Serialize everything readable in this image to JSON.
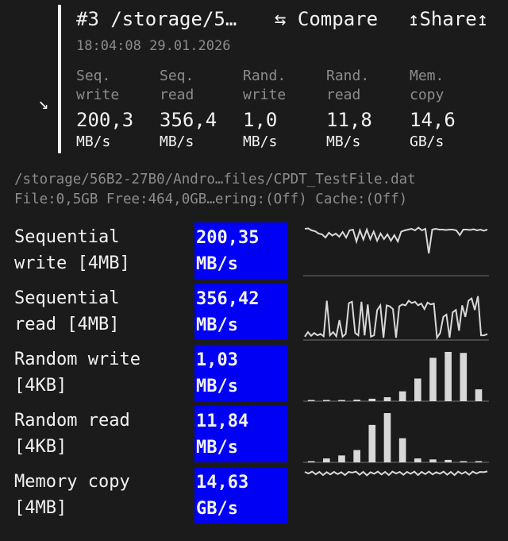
{
  "header": {
    "title": "#3 /storage/5…",
    "compare_label": "⇆ Compare",
    "share_label": "↥Share↥",
    "datetime": "18:04:08 29.01.2026",
    "collapse_icon": "arrow-down-right-icon",
    "summary": [
      {
        "label1": "Seq.",
        "label2": "write",
        "value": "200,3",
        "unit": "MB/s"
      },
      {
        "label1": "Seq.",
        "label2": "read",
        "value": "356,4",
        "unit": "MB/s"
      },
      {
        "label1": "Rand.",
        "label2": "write",
        "value": "1,0",
        "unit": "MB/s"
      },
      {
        "label1": "Rand.",
        "label2": "read",
        "value": "11,8",
        "unit": "MB/s"
      },
      {
        "label1": "Mem.",
        "label2": "copy",
        "value": "14,6",
        "unit": "GB/s"
      }
    ]
  },
  "info": {
    "path": "/storage/56B2-27B0/Andro…files/CPDT_TestFile.dat",
    "details": "File:0,5GB Free:464,0GB…ering:(Off) Cache:(Off)"
  },
  "colors": {
    "accent": "#0000f5",
    "background": "#1b1b1b",
    "graph": "#d8d8d8"
  },
  "results": [
    {
      "label": "Sequential\nwrite [4MB]",
      "value": "200,35",
      "unit": "MB/s",
      "graph": "line",
      "series": [
        0.92,
        0.93,
        0.88,
        0.86,
        0.8,
        0.78,
        0.7,
        0.82,
        0.75,
        0.8,
        0.72,
        0.84,
        0.7,
        0.88,
        0.9,
        0.6,
        0.88,
        0.65,
        0.9,
        0.66,
        0.85,
        0.62,
        0.8,
        0.66,
        0.78,
        0.62,
        0.76,
        0.6,
        0.85,
        0.88,
        0.9,
        0.92,
        0.88,
        0.95,
        0.88,
        0.92,
        0.3,
        0.9,
        0.92,
        0.9,
        0.9,
        0.89,
        0.9,
        0.9,
        0.88,
        0.76,
        0.9,
        0.9,
        0.89,
        0.91,
        0.88,
        0.9,
        0.87,
        0.9
      ]
    },
    {
      "label": "Sequential\nread [4MB]",
      "value": "356,42",
      "unit": "MB/s",
      "graph": "line",
      "series": [
        0.02,
        0.12,
        0.04,
        0.1,
        0.05,
        0.08,
        0.03,
        0.8,
        0.05,
        0.12,
        0.03,
        0.38,
        0.02,
        0.08,
        0.75,
        0.78,
        0.1,
        0.05,
        0.78,
        0.05,
        0.72,
        0.02,
        0.05,
        0.6,
        0.7,
        0.0,
        0.7,
        0.68,
        0.62,
        0.0,
        0.68,
        0.72,
        0.7,
        0.8,
        0.75,
        0.78,
        0.7,
        0.74,
        0.62,
        0.76,
        0.72,
        0.74,
        0.0,
        0.1,
        0.45,
        0.5,
        0.0,
        0.55,
        0.6,
        0.15,
        0.7,
        0.45,
        0.8,
        0.85,
        0.6,
        0.9,
        0.05,
        0.05,
        0.08
      ]
    },
    {
      "label": "Random write\n[4KB]",
      "value": "1,03",
      "unit": "MB/s",
      "graph": "bar",
      "series": [
        0.02,
        0.02,
        0.02,
        0.03,
        0.05,
        0.08,
        0.2,
        0.46,
        0.88,
        1.0,
        0.98,
        0.24
      ]
    },
    {
      "label": "Random read\n[4KB]",
      "value": "11,84",
      "unit": "MB/s",
      "graph": "bar",
      "series": [
        0.02,
        0.08,
        0.14,
        0.25,
        0.76,
        1.0,
        0.49,
        0.08,
        0.06,
        0.05,
        0.01,
        0.01
      ]
    },
    {
      "label": "Memory copy\n[4MB]",
      "value": "14,63",
      "unit": "GB/s",
      "graph": "line",
      "series": [
        0.9,
        0.8,
        0.92,
        0.75,
        0.9,
        0.7,
        0.88,
        0.74,
        0.9,
        0.76,
        0.88,
        0.7,
        0.9,
        0.85,
        0.92,
        0.72,
        0.9,
        0.68,
        0.88,
        0.78,
        0.92,
        0.74,
        0.9,
        0.7,
        0.92,
        0.8,
        0.9,
        0.72,
        0.9,
        0.78,
        0.92,
        0.7,
        0.9,
        0.76,
        0.92,
        0.74,
        0.88,
        0.78,
        0.92,
        0.72,
        0.9,
        0.7,
        0.92,
        0.78,
        0.9,
        0.72,
        0.92,
        0.8,
        0.9,
        0.88,
        0.93
      ]
    }
  ]
}
